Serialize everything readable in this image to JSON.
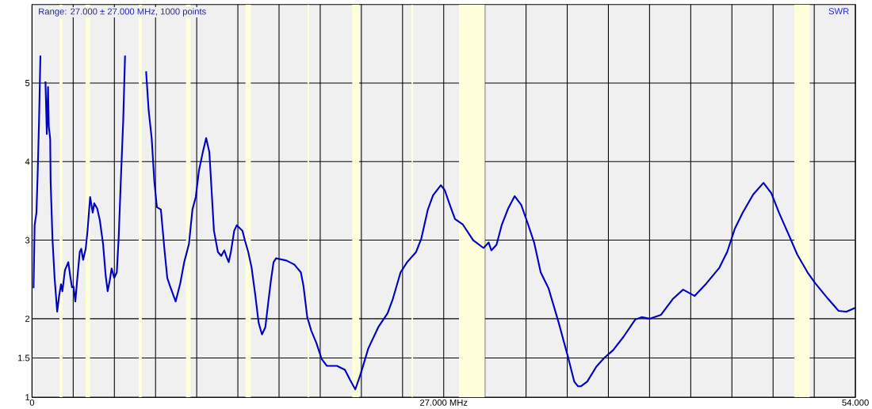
{
  "chart_data": {
    "type": "line",
    "annotations": [
      "Range: 27.000 ± 27.000 MHz, 1000 points"
    ],
    "series": [
      {
        "name": "SWR",
        "color": "#0000c0",
        "x": [
          0.1,
          0.17,
          0.29,
          0.37,
          0.46,
          0.55,
          0.63,
          0.85,
          0.88,
          0.97,
          1.05,
          1.1,
          1.19,
          1.22,
          1.34,
          1.48,
          1.65,
          1.77,
          1.9,
          1.99,
          2.16,
          2.38,
          2.5,
          2.62,
          2.72,
          2.84,
          2.96,
          3.13,
          3.23,
          3.35,
          3.52,
          3.64,
          3.81,
          3.98,
          4.08,
          4.28,
          4.45,
          4.66,
          4.83,
          4.96,
          5.1,
          5.22,
          5.39,
          5.56,
          5.68,
          5.81,
          5.98,
          6.1,
          6.27,
          7.26,
          7.48,
          7.65,
          7.85,
          8.02,
          8.19,
          8.45,
          8.7,
          8.87,
          9.04,
          9.42,
          9.72,
          9.98,
          10.29,
          10.52,
          10.74,
          10.95,
          11.2,
          11.42,
          11.63,
          11.76,
          11.93,
          12.19,
          12.41,
          12.61,
          12.75,
          12.9,
          13.04,
          13.26,
          13.43,
          13.8,
          13.97,
          14.18,
          14.4,
          14.65,
          14.86,
          15.08,
          15.3,
          15.5,
          15.67,
          15.84,
          16.01,
          16.69,
          17.2,
          17.63,
          17.8,
          18.05,
          18.31,
          18.65,
          18.99,
          19.33,
          20.0,
          20.52,
          20.86,
          21.2,
          21.54,
          22.05,
          22.73,
          23.32,
          23.66,
          24.17,
          24.6,
          25.19,
          25.53,
          25.96,
          26.3,
          26.81,
          27.06,
          27.4,
          27.74,
          28.25,
          28.93,
          29.61,
          29.95,
          30.12,
          30.46,
          30.8,
          31.22,
          31.65,
          32.08,
          32.5,
          32.93,
          33.36,
          33.87,
          34.54,
          35.14,
          35.56,
          35.81,
          35.99,
          36.41,
          37.01,
          37.52,
          38.11,
          38.79,
          39.56,
          39.98,
          40.49,
          41.25,
          42.02,
          42.7,
          43.46,
          44.23,
          45.08,
          45.59,
          46.1,
          46.61,
          47.29,
          47.97,
          48.48,
          48.99,
          49.67,
          50.18,
          50.86,
          51.37,
          52.22,
          52.9,
          53.41,
          54.0
        ],
        "values": [
          2.39,
          3.19,
          3.35,
          3.85,
          4.52,
          5.35,
          null,
          null,
          5.02,
          4.35,
          4.95,
          4.45,
          4.29,
          3.75,
          3.02,
          2.52,
          2.09,
          2.28,
          2.44,
          2.35,
          2.62,
          2.72,
          2.55,
          2.4,
          2.41,
          2.22,
          2.49,
          2.85,
          2.89,
          2.75,
          2.89,
          3.12,
          3.55,
          3.35,
          3.47,
          3.4,
          3.25,
          2.95,
          2.55,
          2.35,
          2.49,
          2.64,
          2.52,
          2.59,
          3.02,
          3.69,
          4.52,
          5.35,
          null,
          null,
          5.15,
          4.65,
          4.29,
          3.75,
          3.42,
          3.39,
          2.85,
          2.52,
          2.42,
          2.22,
          2.45,
          2.72,
          2.95,
          3.39,
          3.55,
          3.89,
          4.12,
          4.3,
          4.12,
          3.69,
          3.12,
          2.85,
          2.8,
          2.87,
          2.79,
          2.72,
          2.85,
          3.12,
          3.19,
          3.12,
          2.99,
          2.85,
          2.65,
          2.29,
          1.95,
          1.8,
          1.89,
          2.22,
          2.49,
          2.72,
          2.77,
          2.74,
          2.69,
          2.59,
          2.42,
          2.02,
          1.85,
          1.69,
          1.49,
          1.4,
          1.4,
          1.35,
          1.22,
          1.1,
          1.29,
          1.62,
          1.9,
          2.07,
          2.25,
          2.59,
          2.72,
          2.85,
          3.02,
          3.39,
          3.57,
          3.7,
          3.64,
          3.45,
          3.27,
          3.2,
          3.0,
          2.9,
          2.97,
          2.87,
          2.94,
          3.19,
          3.4,
          3.56,
          3.45,
          3.22,
          2.97,
          2.59,
          2.39,
          1.95,
          1.52,
          1.2,
          1.14,
          1.14,
          1.2,
          1.39,
          1.5,
          1.6,
          1.77,
          1.99,
          2.02,
          2.0,
          2.05,
          2.25,
          2.37,
          2.29,
          2.45,
          2.65,
          2.85,
          3.15,
          3.35,
          3.58,
          3.73,
          3.6,
          3.35,
          3.05,
          2.82,
          2.59,
          2.45,
          2.25,
          2.1,
          2.09,
          2.14
        ]
      }
    ],
    "xlim": [
      0,
      54
    ],
    "xticks": [
      0,
      {
        "value": 2.7,
        "label": null
      },
      {
        "value": 5.4,
        "label": null
      },
      {
        "value": 8.1,
        "label": null
      },
      {
        "value": 10.8,
        "label": null
      },
      {
        "value": 13.5,
        "label": null
      },
      {
        "value": 16.2,
        "label": null
      },
      {
        "value": 18.9,
        "label": null
      },
      {
        "value": 21.6,
        "label": null
      },
      {
        "value": 24.3,
        "label": null
      },
      {
        "value": 27,
        "label": "27.000 MHz"
      },
      {
        "value": 29.7,
        "label": null
      },
      {
        "value": 32.4,
        "label": null
      },
      {
        "value": 35.1,
        "label": null
      },
      {
        "value": 37.8,
        "label": null
      },
      {
        "value": 40.5,
        "label": null
      },
      {
        "value": 43.2,
        "label": null
      },
      {
        "value": 45.9,
        "label": null
      },
      {
        "value": 48.6,
        "label": null
      },
      {
        "value": 51.3,
        "label": null
      },
      {
        "value": 54,
        "label": "54.000"
      }
    ],
    "ylim": [
      1,
      6
    ],
    "yticks": [
      1,
      1.5,
      2,
      3,
      4,
      5
    ],
    "grid": true,
    "legend": "top right",
    "bands": [
      {
        "axis": "x",
        "from": 1.8,
        "to": 2.0,
        "color": "#ffffdc"
      },
      {
        "axis": "x",
        "from": 3.5,
        "to": 3.8,
        "color": "#ffffdc"
      },
      {
        "axis": "x",
        "from": 7.0,
        "to": 7.2,
        "color": "#ffffdc"
      },
      {
        "axis": "x",
        "from": 10.1,
        "to": 10.4,
        "color": "#ffffdc"
      },
      {
        "axis": "x",
        "from": 14.0,
        "to": 14.35,
        "color": "#ffffdc"
      },
      {
        "axis": "x",
        "from": 18.068,
        "to": 18.168,
        "color": "#ffffdc"
      },
      {
        "axis": "x",
        "from": 21.0,
        "to": 21.45,
        "color": "#ffffdc"
      },
      {
        "axis": "x",
        "from": 24.89,
        "to": 24.99,
        "color": "#ffffdc"
      },
      {
        "axis": "x",
        "from": 28.0,
        "to": 29.7,
        "color": "#ffffdc"
      },
      {
        "axis": "x",
        "from": 50.0,
        "to": 51.0,
        "color": "#ffffdc"
      }
    ]
  }
}
